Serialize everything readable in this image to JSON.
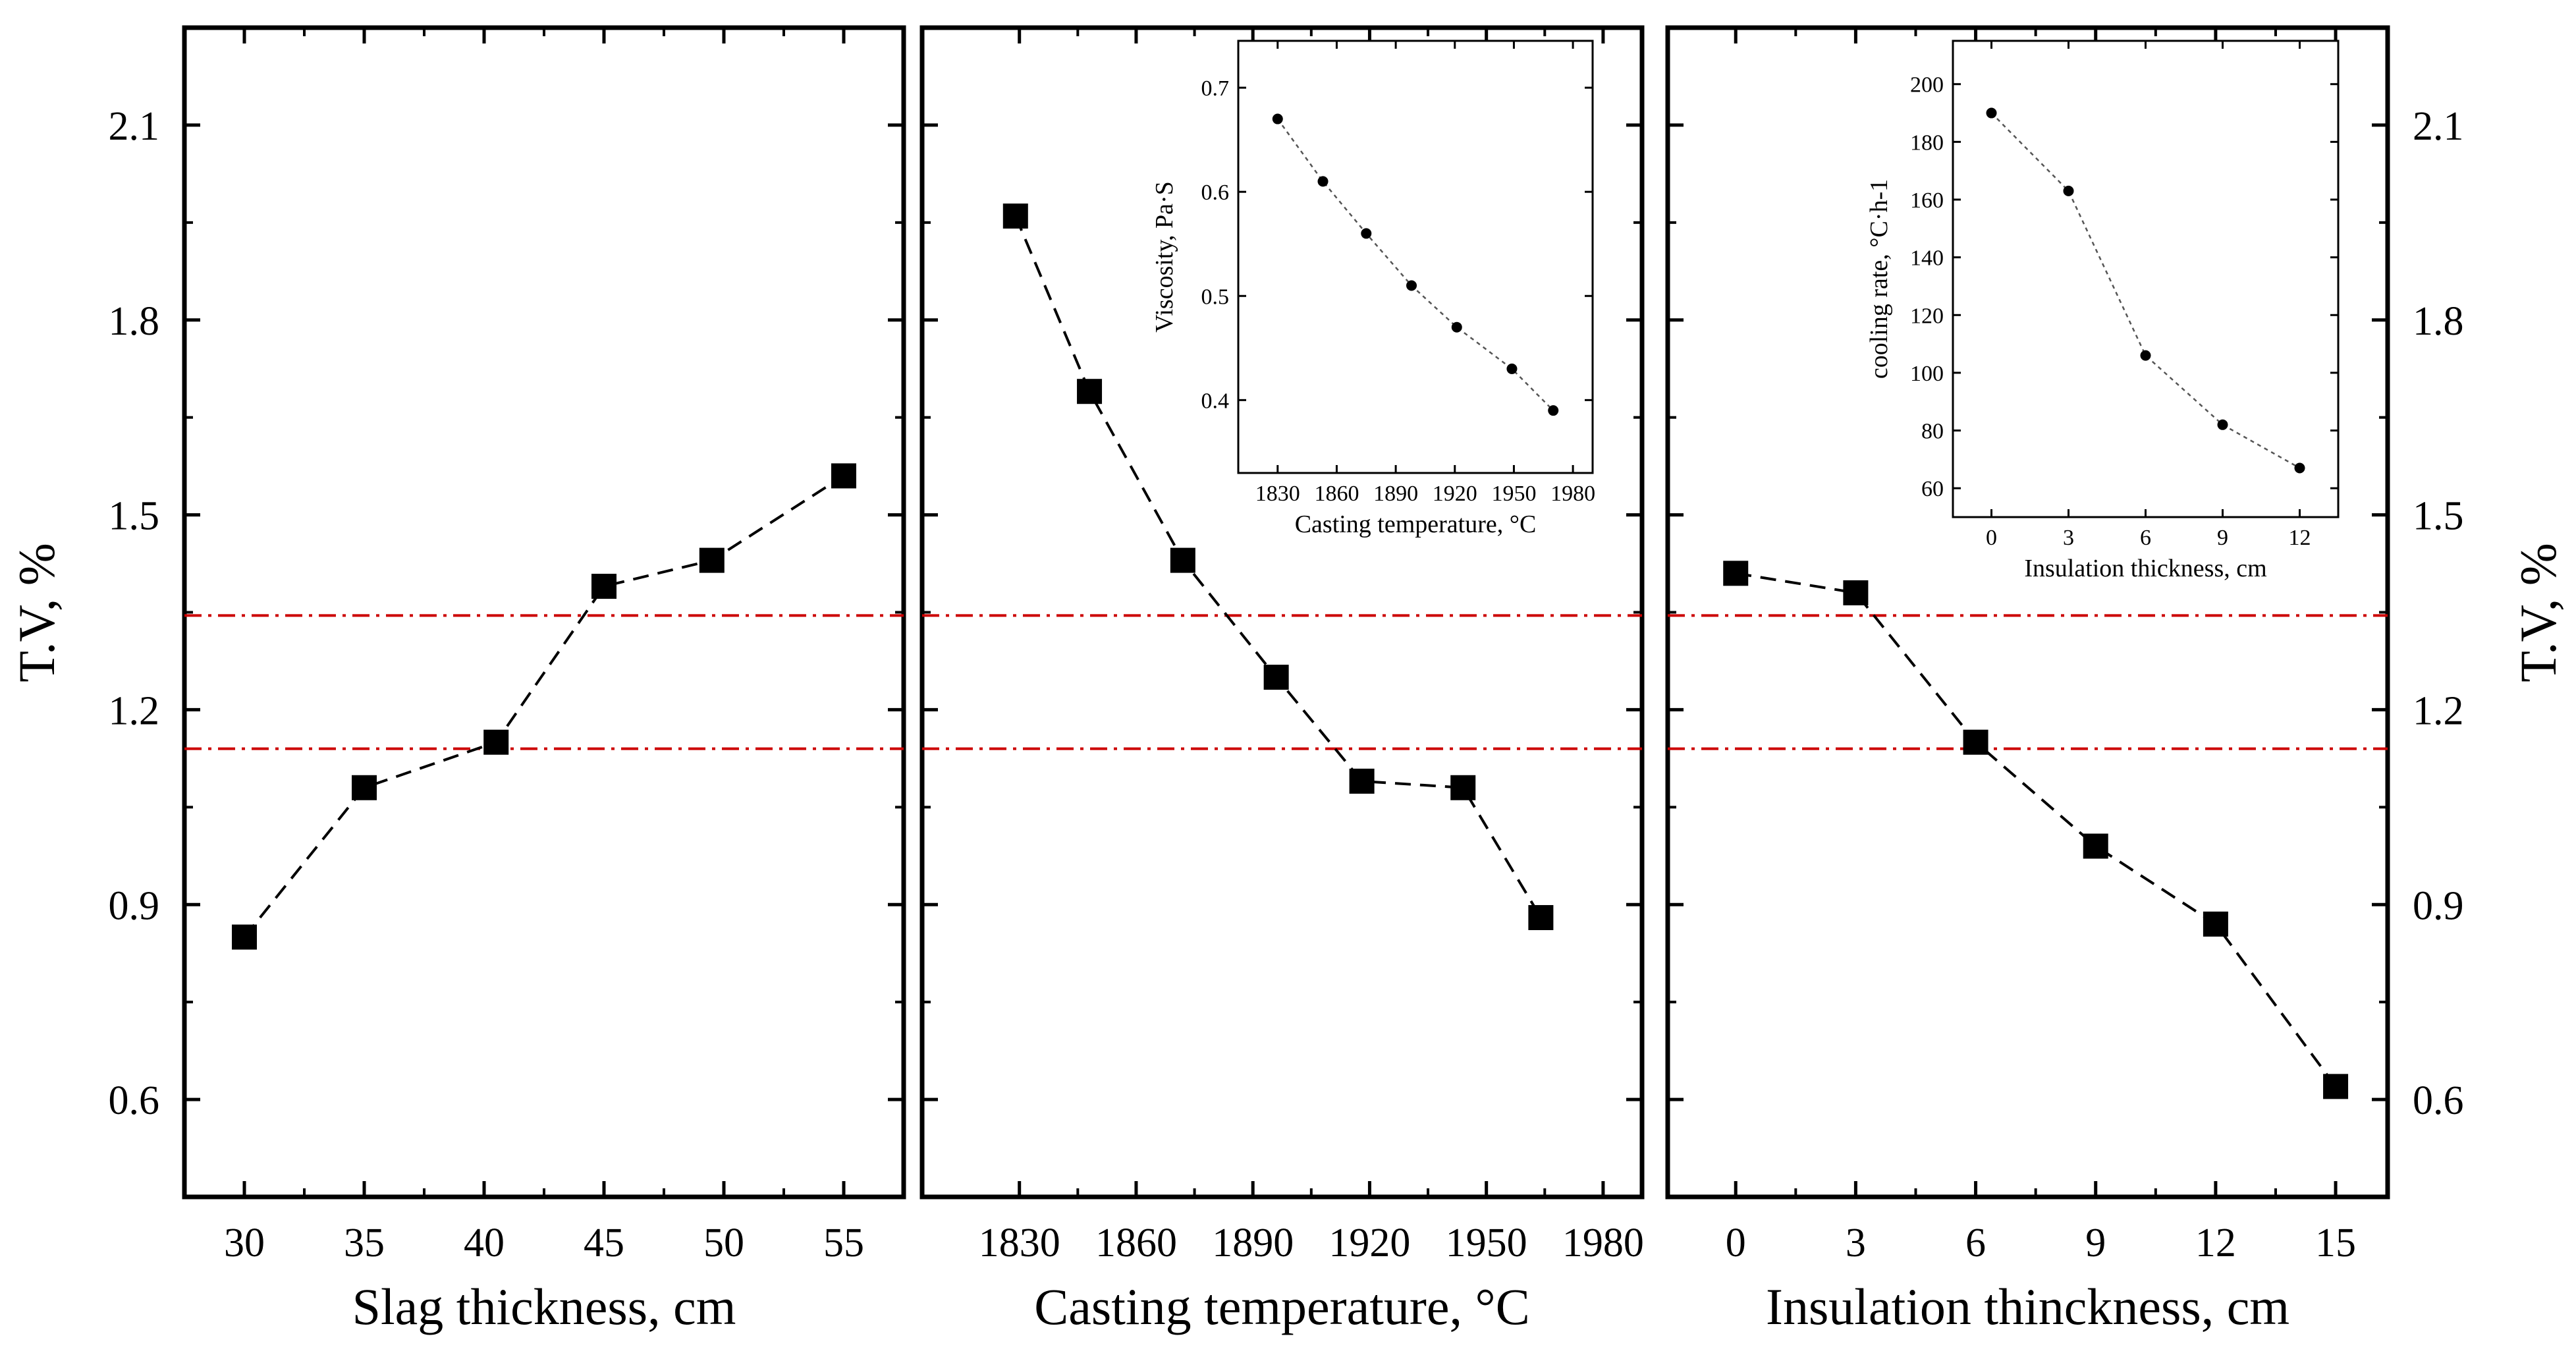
{
  "colors": {
    "axis": "#000000",
    "markers": "#000000",
    "reference_lines": "#cc0000",
    "inset_line": "#555555"
  },
  "shared": {
    "ylabel": "T.V, %",
    "yticks": [
      "0.6",
      "0.9",
      "1.2",
      "1.5",
      "1.8",
      "2.1"
    ],
    "ylim": [
      0.45,
      2.25
    ],
    "reference_lines": [
      1.345,
      1.14
    ]
  },
  "chart_data": [
    {
      "type": "line",
      "marker": "square",
      "line_style": "dashed",
      "xlabel": "Slag thickness, cm",
      "ylabel": "T.V, %",
      "xlim": [
        27.5,
        57.5
      ],
      "xticks": [
        "30",
        "35",
        "40",
        "45",
        "50",
        "55"
      ],
      "ylim": [
        0.45,
        2.25
      ],
      "points": [
        {
          "x": 30,
          "y": 0.85
        },
        {
          "x": 35,
          "y": 1.08
        },
        {
          "x": 40.5,
          "y": 1.15
        },
        {
          "x": 45,
          "y": 1.39
        },
        {
          "x": 49.5,
          "y": 1.43
        },
        {
          "x": 55,
          "y": 1.56
        }
      ]
    },
    {
      "type": "line",
      "marker": "square",
      "line_style": "dashed",
      "xlabel": "Casting temperature, °C",
      "xlim": [
        1805,
        1990
      ],
      "xticks": [
        "1830",
        "1860",
        "1890",
        "1920",
        "1950",
        "1980"
      ],
      "ylim": [
        0.45,
        2.25
      ],
      "points": [
        {
          "x": 1829,
          "y": 1.96
        },
        {
          "x": 1848,
          "y": 1.69
        },
        {
          "x": 1872,
          "y": 1.43
        },
        {
          "x": 1896,
          "y": 1.25
        },
        {
          "x": 1918,
          "y": 1.09
        },
        {
          "x": 1944,
          "y": 1.08
        },
        {
          "x": 1964,
          "y": 0.88
        }
      ]
    },
    {
      "type": "line",
      "marker": "square",
      "line_style": "dashed",
      "xlabel": "Insulation thinckness, cm",
      "ylabel": "T.V, %",
      "xlim": [
        -1.7,
        16.3
      ],
      "xticks": [
        "0",
        "3",
        "6",
        "9",
        "12",
        "15"
      ],
      "ylim": [
        0.45,
        2.25
      ],
      "points": [
        {
          "x": 0,
          "y": 1.41
        },
        {
          "x": 3,
          "y": 1.38
        },
        {
          "x": 6,
          "y": 1.15
        },
        {
          "x": 9,
          "y": 0.99
        },
        {
          "x": 12,
          "y": 0.87
        },
        {
          "x": 15,
          "y": 0.62
        }
      ]
    },
    {
      "type": "line",
      "role": "inset",
      "marker": "circle",
      "line_style": "dotted",
      "xlabel": "Casting temperature, °C",
      "ylabel": "Viscosity, Pa·S",
      "xlim": [
        1810,
        1990
      ],
      "ylim": [
        0.33,
        0.745
      ],
      "xticks": [
        "1830",
        "1860",
        "1890",
        "1920",
        "1950",
        "1980"
      ],
      "yticks": [
        "0.4",
        "0.5",
        "0.6",
        "0.7"
      ],
      "points": [
        {
          "x": 1830,
          "y": 0.67
        },
        {
          "x": 1853,
          "y": 0.61
        },
        {
          "x": 1875,
          "y": 0.56
        },
        {
          "x": 1898,
          "y": 0.51
        },
        {
          "x": 1921,
          "y": 0.47
        },
        {
          "x": 1949,
          "y": 0.43
        },
        {
          "x": 1970,
          "y": 0.39
        }
      ]
    },
    {
      "type": "line",
      "role": "inset",
      "marker": "circle",
      "line_style": "dotted",
      "xlabel": "Insulation thickness, cm",
      "ylabel": "cooling rate, °C·h-1",
      "xlim": [
        -1.5,
        13.5
      ],
      "ylim": [
        50,
        215
      ],
      "xticks": [
        "0",
        "3",
        "6",
        "9",
        "12"
      ],
      "yticks": [
        "60",
        "80",
        "100",
        "120",
        "140",
        "160",
        "180",
        "200"
      ],
      "points": [
        {
          "x": 0,
          "y": 190
        },
        {
          "x": 3,
          "y": 163
        },
        {
          "x": 6,
          "y": 106
        },
        {
          "x": 9,
          "y": 82
        },
        {
          "x": 12,
          "y": 67
        }
      ]
    }
  ]
}
